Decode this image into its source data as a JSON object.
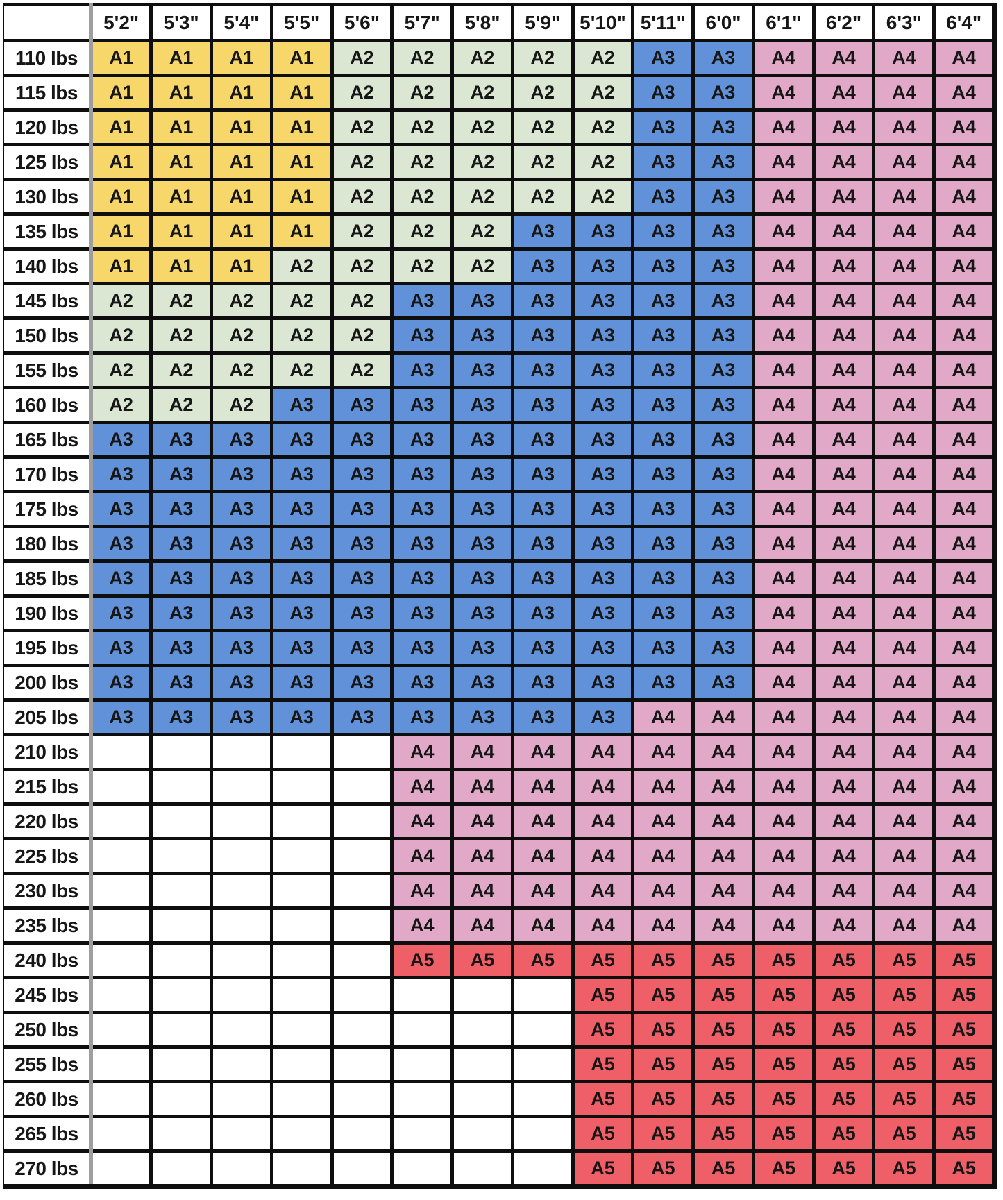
{
  "chart_data": {
    "type": "heatmap",
    "x_categories": [
      "5'2\"",
      "5'3\"",
      "5'4\"",
      "5'5\"",
      "5'6\"",
      "5'7\"",
      "5'8\"",
      "5'9\"",
      "5'10\"",
      "5'11\"",
      "6'0\"",
      "6'1\"",
      "6'2\"",
      "6'3\"",
      "6'4\""
    ],
    "y_categories": [
      "110 lbs",
      "115 lbs",
      "120 lbs",
      "125 lbs",
      "130 lbs",
      "135 lbs",
      "140 lbs",
      "145 lbs",
      "150 lbs",
      "155 lbs",
      "160 lbs",
      "165 lbs",
      "170 lbs",
      "175 lbs",
      "180 lbs",
      "185 lbs",
      "190 lbs",
      "195 lbs",
      "200 lbs",
      "205 lbs",
      "210 lbs",
      "215 lbs",
      "220 lbs",
      "225 lbs",
      "230 lbs",
      "235 lbs",
      "240 lbs",
      "245 lbs",
      "250 lbs",
      "255 lbs",
      "260 lbs",
      "265 lbs",
      "270 lbs"
    ],
    "corner_label": "",
    "values": [
      [
        "A1",
        "A1",
        "A1",
        "A1",
        "A2",
        "A2",
        "A2",
        "A2",
        "A2",
        "A3",
        "A3",
        "A4",
        "A4",
        "A4",
        "A4"
      ],
      [
        "A1",
        "A1",
        "A1",
        "A1",
        "A2",
        "A2",
        "A2",
        "A2",
        "A2",
        "A3",
        "A3",
        "A4",
        "A4",
        "A4",
        "A4"
      ],
      [
        "A1",
        "A1",
        "A1",
        "A1",
        "A2",
        "A2",
        "A2",
        "A2",
        "A2",
        "A3",
        "A3",
        "A4",
        "A4",
        "A4",
        "A4"
      ],
      [
        "A1",
        "A1",
        "A1",
        "A1",
        "A2",
        "A2",
        "A2",
        "A2",
        "A2",
        "A3",
        "A3",
        "A4",
        "A4",
        "A4",
        "A4"
      ],
      [
        "A1",
        "A1",
        "A1",
        "A1",
        "A2",
        "A2",
        "A2",
        "A2",
        "A2",
        "A3",
        "A3",
        "A4",
        "A4",
        "A4",
        "A4"
      ],
      [
        "A1",
        "A1",
        "A1",
        "A1",
        "A2",
        "A2",
        "A2",
        "A3",
        "A3",
        "A3",
        "A3",
        "A4",
        "A4",
        "A4",
        "A4"
      ],
      [
        "A1",
        "A1",
        "A1",
        "A2",
        "A2",
        "A2",
        "A2",
        "A3",
        "A3",
        "A3",
        "A3",
        "A4",
        "A4",
        "A4",
        "A4"
      ],
      [
        "A2",
        "A2",
        "A2",
        "A2",
        "A2",
        "A3",
        "A3",
        "A3",
        "A3",
        "A3",
        "A3",
        "A4",
        "A4",
        "A4",
        "A4"
      ],
      [
        "A2",
        "A2",
        "A2",
        "A2",
        "A2",
        "A3",
        "A3",
        "A3",
        "A3",
        "A3",
        "A3",
        "A4",
        "A4",
        "A4",
        "A4"
      ],
      [
        "A2",
        "A2",
        "A2",
        "A2",
        "A2",
        "A3",
        "A3",
        "A3",
        "A3",
        "A3",
        "A3",
        "A4",
        "A4",
        "A4",
        "A4"
      ],
      [
        "A2",
        "A2",
        "A2",
        "A3",
        "A3",
        "A3",
        "A3",
        "A3",
        "A3",
        "A3",
        "A3",
        "A4",
        "A4",
        "A4",
        "A4"
      ],
      [
        "A3",
        "A3",
        "A3",
        "A3",
        "A3",
        "A3",
        "A3",
        "A3",
        "A3",
        "A3",
        "A3",
        "A4",
        "A4",
        "A4",
        "A4"
      ],
      [
        "A3",
        "A3",
        "A3",
        "A3",
        "A3",
        "A3",
        "A3",
        "A3",
        "A3",
        "A3",
        "A3",
        "A4",
        "A4",
        "A4",
        "A4"
      ],
      [
        "A3",
        "A3",
        "A3",
        "A3",
        "A3",
        "A3",
        "A3",
        "A3",
        "A3",
        "A3",
        "A3",
        "A4",
        "A4",
        "A4",
        "A4"
      ],
      [
        "A3",
        "A3",
        "A3",
        "A3",
        "A3",
        "A3",
        "A3",
        "A3",
        "A3",
        "A3",
        "A3",
        "A4",
        "A4",
        "A4",
        "A4"
      ],
      [
        "A3",
        "A3",
        "A3",
        "A3",
        "A3",
        "A3",
        "A3",
        "A3",
        "A3",
        "A3",
        "A3",
        "A4",
        "A4",
        "A4",
        "A4"
      ],
      [
        "A3",
        "A3",
        "A3",
        "A3",
        "A3",
        "A3",
        "A3",
        "A3",
        "A3",
        "A3",
        "A3",
        "A4",
        "A4",
        "A4",
        "A4"
      ],
      [
        "A3",
        "A3",
        "A3",
        "A3",
        "A3",
        "A3",
        "A3",
        "A3",
        "A3",
        "A3",
        "A3",
        "A4",
        "A4",
        "A4",
        "A4"
      ],
      [
        "A3",
        "A3",
        "A3",
        "A3",
        "A3",
        "A3",
        "A3",
        "A3",
        "A3",
        "A3",
        "A3",
        "A4",
        "A4",
        "A4",
        "A4"
      ],
      [
        "A3",
        "A3",
        "A3",
        "A3",
        "A3",
        "A3",
        "A3",
        "A3",
        "A3",
        "A4",
        "A4",
        "A4",
        "A4",
        "A4",
        "A4"
      ],
      [
        "",
        "",
        "",
        "",
        "",
        "A4",
        "A4",
        "A4",
        "A4",
        "A4",
        "A4",
        "A4",
        "A4",
        "A4",
        "A4"
      ],
      [
        "",
        "",
        "",
        "",
        "",
        "A4",
        "A4",
        "A4",
        "A4",
        "A4",
        "A4",
        "A4",
        "A4",
        "A4",
        "A4"
      ],
      [
        "",
        "",
        "",
        "",
        "",
        "A4",
        "A4",
        "A4",
        "A4",
        "A4",
        "A4",
        "A4",
        "A4",
        "A4",
        "A4"
      ],
      [
        "",
        "",
        "",
        "",
        "",
        "A4",
        "A4",
        "A4",
        "A4",
        "A4",
        "A4",
        "A4",
        "A4",
        "A4",
        "A4"
      ],
      [
        "",
        "",
        "",
        "",
        "",
        "A4",
        "A4",
        "A4",
        "A4",
        "A4",
        "A4",
        "A4",
        "A4",
        "A4",
        "A4"
      ],
      [
        "",
        "",
        "",
        "",
        "",
        "A4",
        "A4",
        "A4",
        "A4",
        "A4",
        "A4",
        "A4",
        "A4",
        "A4",
        "A4"
      ],
      [
        "",
        "",
        "",
        "",
        "",
        "A5",
        "A5",
        "A5",
        "A5",
        "A5",
        "A5",
        "A5",
        "A5",
        "A5",
        "A5"
      ],
      [
        "",
        "",
        "",
        "",
        "",
        "",
        "",
        "",
        "A5",
        "A5",
        "A5",
        "A5",
        "A5",
        "A5",
        "A5"
      ],
      [
        "",
        "",
        "",
        "",
        "",
        "",
        "",
        "",
        "A5",
        "A5",
        "A5",
        "A5",
        "A5",
        "A5",
        "A5"
      ],
      [
        "",
        "",
        "",
        "",
        "",
        "",
        "",
        "",
        "A5",
        "A5",
        "A5",
        "A5",
        "A5",
        "A5",
        "A5"
      ],
      [
        "",
        "",
        "",
        "",
        "",
        "",
        "",
        "",
        "A5",
        "A5",
        "A5",
        "A5",
        "A5",
        "A5",
        "A5"
      ],
      [
        "",
        "",
        "",
        "",
        "",
        "",
        "",
        "",
        "A5",
        "A5",
        "A5",
        "A5",
        "A5",
        "A5",
        "A5"
      ],
      [
        "",
        "",
        "",
        "",
        "",
        "",
        "",
        "",
        "A5",
        "A5",
        "A5",
        "A5",
        "A5",
        "A5",
        "A5"
      ]
    ],
    "legend": {
      "A1": "#F8D76A",
      "A2": "#DBE6D3",
      "A3": "#6191D8",
      "A4": "#E1A8C7",
      "A5": "#EF5F68",
      "": "#FFFFFF"
    },
    "layout_hints": {
      "grid": true,
      "grid_color": "#0e0e0e",
      "row_label_separator_color": "#9e9e9e",
      "background": "#ffffff",
      "text_color": "#161616"
    }
  }
}
